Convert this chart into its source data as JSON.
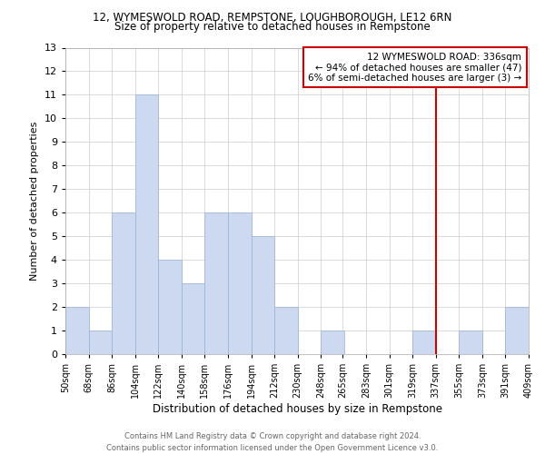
{
  "title_line1": "12, WYMESWOLD ROAD, REMPSTONE, LOUGHBOROUGH, LE12 6RN",
  "title_line2": "Size of property relative to detached houses in Rempstone",
  "xlabel": "Distribution of detached houses by size in Rempstone",
  "ylabel": "Number of detached properties",
  "bin_edges": [
    50,
    68,
    86,
    104,
    122,
    140,
    158,
    176,
    194,
    212,
    230,
    248,
    265,
    283,
    301,
    319,
    337,
    355,
    373,
    391,
    409
  ],
  "bar_heights": [
    2,
    1,
    6,
    11,
    4,
    3,
    6,
    6,
    5,
    2,
    0,
    1,
    0,
    0,
    0,
    1,
    0,
    1,
    0,
    2
  ],
  "bar_color": "#ccd9f0",
  "bar_edge_color": "#9ab0d0",
  "red_line_x": 337,
  "red_line_color": "#cc0000",
  "annotation_text_line1": "12 WYMESWOLD ROAD: 336sqm",
  "annotation_text_line2": "← 94% of detached houses are smaller (47)",
  "annotation_text_line3": "6% of semi-detached houses are larger (3) →",
  "annotation_fontsize": 7.5,
  "footer_line1": "Contains HM Land Registry data © Crown copyright and database right 2024.",
  "footer_line2": "Contains public sector information licensed under the Open Government Licence v3.0.",
  "ylim": [
    0,
    13
  ],
  "yticks": [
    0,
    1,
    2,
    3,
    4,
    5,
    6,
    7,
    8,
    9,
    10,
    11,
    12,
    13
  ],
  "background_color": "#ffffff",
  "grid_color": "#cccccc",
  "title1_fontsize": 8.5,
  "title2_fontsize": 8.5,
  "xlabel_fontsize": 8.5,
  "ylabel_fontsize": 8.0,
  "xtick_fontsize": 7.0,
  "ytick_fontsize": 8.0,
  "footer_fontsize": 6.0
}
